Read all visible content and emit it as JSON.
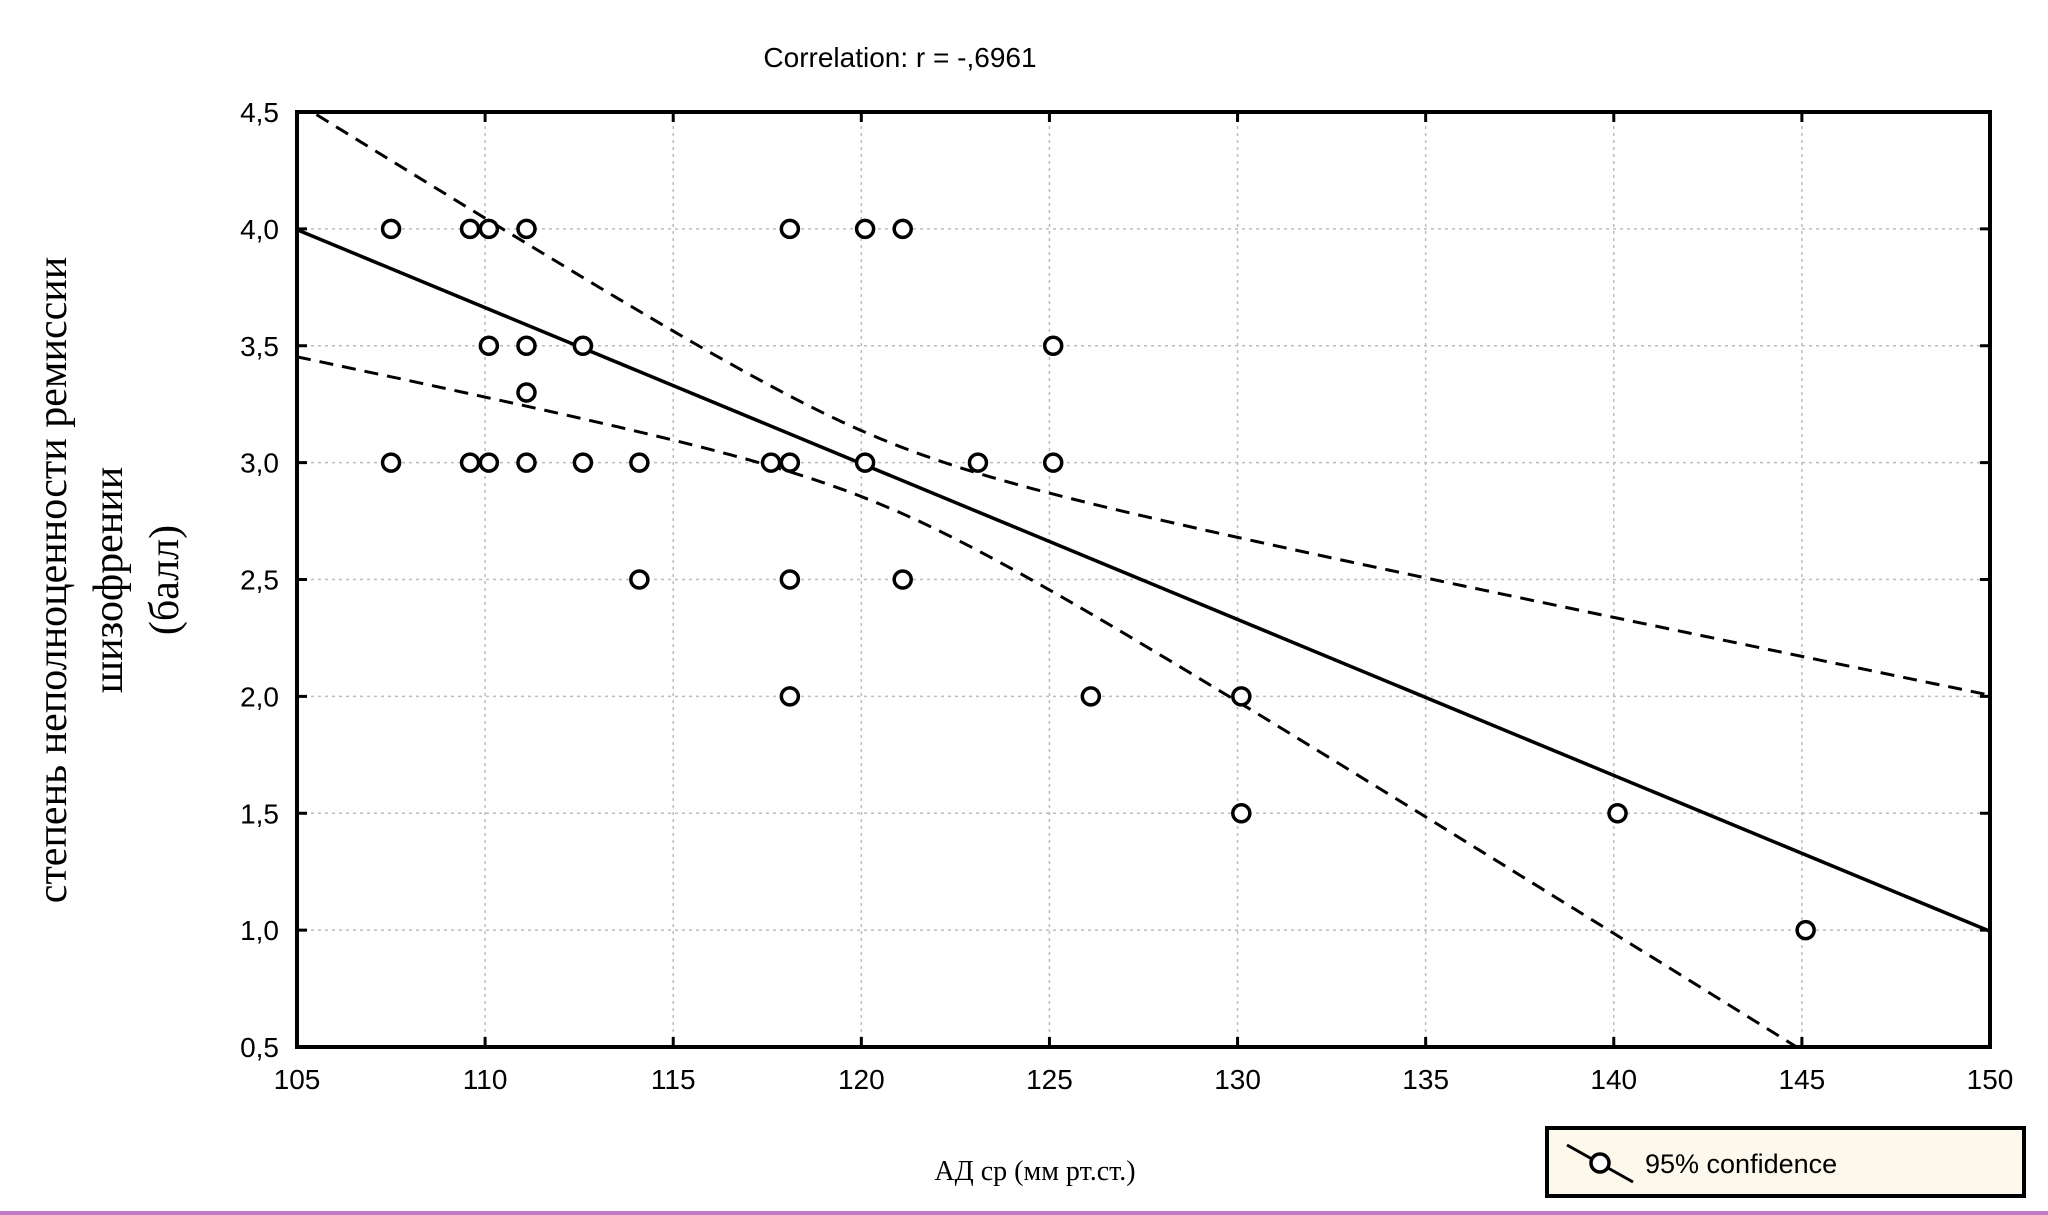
{
  "chart_data": {
    "type": "scatter",
    "title": "Correlation: r = -,6961",
    "xlabel": "АД ср (мм рт.ст.)",
    "ylabel_lines": [
      "степень неполноценности ремиссии",
      "шизофрении",
      "(балл)"
    ],
    "xlim": [
      105,
      150
    ],
    "ylim": [
      0.5,
      4.5
    ],
    "x_ticks": [
      "105",
      "110",
      "115",
      "120",
      "125",
      "130",
      "135",
      "140",
      "145",
      "150"
    ],
    "y_ticks": [
      "0,5",
      "1,0",
      "1,5",
      "2,0",
      "2,5",
      "3,0",
      "3,5",
      "4,0",
      "4,5"
    ],
    "grid": true,
    "legend": {
      "position": "bottom-right",
      "entries": [
        "95% confidence"
      ]
    },
    "series": [
      {
        "marker": "circle",
        "points": [
          [
            107.5,
            4.0
          ],
          [
            109.6,
            4.0
          ],
          [
            110.1,
            4.0
          ],
          [
            111.1,
            4.0
          ],
          [
            118.1,
            4.0
          ],
          [
            120.1,
            4.0
          ],
          [
            121.1,
            4.0
          ],
          [
            110.1,
            3.5
          ],
          [
            111.1,
            3.5
          ],
          [
            112.6,
            3.5
          ],
          [
            125.1,
            3.5
          ],
          [
            111.1,
            3.3
          ],
          [
            107.5,
            3.0
          ],
          [
            109.6,
            3.0
          ],
          [
            110.1,
            3.0
          ],
          [
            111.1,
            3.0
          ],
          [
            112.6,
            3.0
          ],
          [
            114.1,
            3.0
          ],
          [
            117.6,
            3.0
          ],
          [
            118.1,
            3.0
          ],
          [
            120.1,
            3.0
          ],
          [
            123.1,
            3.0
          ],
          [
            125.1,
            3.0
          ],
          [
            114.1,
            2.5
          ],
          [
            118.1,
            2.5
          ],
          [
            121.1,
            2.5
          ],
          [
            118.1,
            2.0
          ],
          [
            126.1,
            2.0
          ],
          [
            130.1,
            2.0
          ],
          [
            130.1,
            1.5
          ],
          [
            140.1,
            1.5
          ],
          [
            145.1,
            1.0
          ]
        ]
      }
    ],
    "regression": {
      "intercept": 11.0,
      "slope": -0.0667,
      "ci_halfwidth_min": 0.14,
      "ci_x_mean": 120.5,
      "ci_growth": 0.00115
    }
  }
}
